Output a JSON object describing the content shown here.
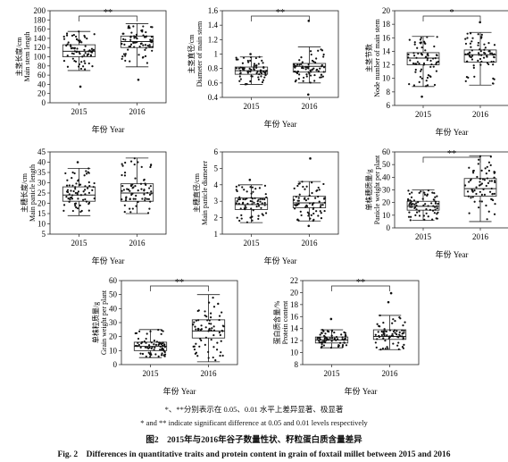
{
  "panels": [
    {
      "id": "main-stem-length",
      "ylabel": [
        "主茎长度/cm",
        "Main stem length"
      ],
      "ylim": [
        0,
        200
      ],
      "yticks": [
        0,
        20,
        40,
        60,
        80,
        100,
        120,
        140,
        160,
        180,
        200
      ],
      "categories": [
        "2015",
        "2016"
      ],
      "xlabel": "年份 Year",
      "sig": "**",
      "boxes": [
        {
          "min": 70,
          "q1": 100,
          "median": 112,
          "q3": 126,
          "max": 155
        },
        {
          "min": 78,
          "q1": 120,
          "median": 133,
          "q3": 145,
          "max": 172
        }
      ],
      "outliers": [
        [
          35
        ],
        [
          50
        ]
      ]
    },
    {
      "id": "main-stem-diameter",
      "ylabel": [
        "主茎直径/cm",
        "Diameter of main stem"
      ],
      "ylim": [
        0.4,
        1.6
      ],
      "yticks": [
        0.4,
        0.6,
        0.8,
        1.0,
        1.2,
        1.4,
        1.6
      ],
      "categories": [
        "2015",
        "2016"
      ],
      "xlabel": "年份 Year",
      "sig": "**",
      "boxes": [
        {
          "min": 0.58,
          "q1": 0.72,
          "median": 0.77,
          "q3": 0.82,
          "max": 0.96
        },
        {
          "min": 0.6,
          "q1": 0.75,
          "median": 0.83,
          "q3": 0.87,
          "max": 1.1
        }
      ],
      "outliers": [
        [
          1.0
        ],
        [
          1.46,
          0.44
        ]
      ]
    },
    {
      "id": "main-stem-nodes",
      "ylabel": [
        "主茎节数",
        "Node number of main stem"
      ],
      "ylim": [
        6,
        20
      ],
      "yticks": [
        6,
        8,
        10,
        12,
        14,
        16,
        18,
        20
      ],
      "categories": [
        "2015",
        "2016"
      ],
      "xlabel": "年份 Year",
      "sig": "*",
      "boxes": [
        {
          "min": 8.8,
          "q1": 12,
          "median": 13,
          "q3": 13.8,
          "max": 16.2
        },
        {
          "min": 9,
          "q1": 12.4,
          "median": 13.5,
          "q3": 14.2,
          "max": 16.8
        }
      ],
      "outliers": [
        [
          7.3
        ],
        [
          18.3
        ]
      ]
    },
    {
      "id": "main-panicle-length",
      "ylabel": [
        "主穗长度/cm",
        "Main panicle length"
      ],
      "ylim": [
        5,
        45
      ],
      "yticks": [
        5,
        10,
        15,
        20,
        25,
        30,
        35,
        40,
        45
      ],
      "categories": [
        "2015",
        "2016"
      ],
      "xlabel": "年份 Year",
      "sig": "",
      "boxes": [
        {
          "min": 14,
          "q1": 21,
          "median": 24,
          "q3": 28,
          "max": 37
        },
        {
          "min": 15,
          "q1": 21,
          "median": 25,
          "q3": 29.5,
          "max": 42
        }
      ],
      "outliers": [
        [
          40
        ],
        []
      ]
    },
    {
      "id": "main-panicle-diameter",
      "ylabel": [
        "主穗直径/cm",
        "Main panicle diameter"
      ],
      "ylim": [
        1,
        6
      ],
      "yticks": [
        1,
        2,
        3,
        4,
        5,
        6
      ],
      "categories": [
        "2015",
        "2016"
      ],
      "xlabel": "年份 Year",
      "sig": "",
      "boxes": [
        {
          "min": 1.7,
          "q1": 2.5,
          "median": 2.8,
          "q3": 3.2,
          "max": 4.0
        },
        {
          "min": 1.8,
          "q1": 2.6,
          "median": 2.9,
          "q3": 3.3,
          "max": 4.2
        }
      ],
      "outliers": [
        [
          4.3
        ],
        [
          5.6,
          1.5
        ]
      ]
    },
    {
      "id": "panicle-weight",
      "ylabel": [
        "单株穗质量/g",
        "Panicle weight per plant"
      ],
      "ylim": [
        0,
        60
      ],
      "yticks": [
        0,
        10,
        20,
        30,
        40,
        50,
        60
      ],
      "categories": [
        "2015",
        "2016"
      ],
      "xlabel": "年份 Year",
      "sig": "**",
      "boxes": [
        {
          "min": 6,
          "q1": 14,
          "median": 17,
          "q3": 21,
          "max": 30
        },
        {
          "min": 5,
          "q1": 25,
          "median": 31,
          "q3": 39,
          "max": 57
        }
      ],
      "outliers": [
        [],
        []
      ]
    },
    {
      "id": "grain-weight",
      "ylabel": [
        "单株粒质量/g",
        "Grain weight per plant"
      ],
      "ylim": [
        0,
        60
      ],
      "yticks": [
        0,
        10,
        20,
        30,
        40,
        50,
        60
      ],
      "categories": [
        "2015",
        "2016"
      ],
      "xlabel": "年份 Year",
      "sig": "**",
      "boxes": [
        {
          "min": 5,
          "q1": 10,
          "median": 13,
          "q3": 16,
          "max": 25
        },
        {
          "min": 2,
          "q1": 19,
          "median": 24,
          "q3": 32,
          "max": 50
        }
      ],
      "outliers": [
        [],
        []
      ]
    },
    {
      "id": "protein-content",
      "ylabel": [
        "蛋白质含量/%",
        "Protein content"
      ],
      "ylim": [
        8,
        22
      ],
      "yticks": [
        8,
        10,
        12,
        14,
        16,
        18,
        20,
        22
      ],
      "categories": [
        "2015",
        "2016"
      ],
      "xlabel": "年份 Year",
      "sig": "**",
      "boxes": [
        {
          "min": 10.8,
          "q1": 11.6,
          "median": 12.1,
          "q3": 12.6,
          "max": 13.8
        },
        {
          "min": 10.5,
          "q1": 12.2,
          "median": 12.7,
          "q3": 13.8,
          "max": 16.2
        }
      ],
      "outliers": [
        [
          15.6
        ],
        [
          19.9,
          18.4
        ]
      ]
    }
  ],
  "notes": {
    "cn": "*、**分别表示在 0.05、0.01 水平上差异显著、极显著",
    "en": "* and ** indicate significant difference at 0.05 and 0.01 levels respectively"
  },
  "caption": {
    "cn": "图2　2015年与2016年谷子数量性状、籽粒蛋白质含量差异",
    "en": "Fig. 2　Differences in quantitative traits and protein content in grain of foxtail millet between 2015 and 2016"
  }
}
